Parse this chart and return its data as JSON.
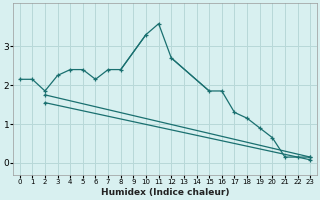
{
  "xlabel": "Humidex (Indice chaleur)",
  "bg_color": "#d8f0f0",
  "grid_color": "#b8d8d8",
  "line_color": "#1a7070",
  "xlim": [
    -0.5,
    23.5
  ],
  "ylim": [
    -0.3,
    4.1
  ],
  "xticks": [
    0,
    1,
    2,
    3,
    4,
    5,
    6,
    7,
    8,
    9,
    10,
    11,
    12,
    13,
    14,
    15,
    16,
    17,
    18,
    19,
    20,
    21,
    22,
    23
  ],
  "yticks": [
    0,
    1,
    2,
    3
  ],
  "curve1_x": [
    0,
    1,
    2,
    3,
    4,
    5,
    6,
    7,
    8,
    10,
    11,
    12,
    15,
    16,
    17,
    18,
    19,
    20,
    21,
    22,
    23
  ],
  "curve1_y": [
    2.15,
    2.15,
    1.85,
    2.25,
    2.4,
    2.4,
    2.15,
    2.4,
    2.4,
    3.3,
    3.58,
    2.7,
    1.85,
    1.85,
    1.3,
    1.15,
    0.9,
    0.65,
    0.15,
    0.15,
    0.15
  ],
  "curve1_gaps": [
    [
      9,
      10
    ],
    [
      13,
      15
    ]
  ],
  "curve2_x": [
    2,
    23
  ],
  "curve2_y": [
    1.75,
    0.15
  ],
  "curve3_x": [
    2,
    23
  ],
  "curve3_y": [
    1.55,
    0.08
  ],
  "markers1": [
    0,
    1,
    2,
    3,
    4,
    5,
    6,
    7,
    8,
    10,
    11,
    12,
    15,
    16,
    17,
    18,
    19,
    20,
    21,
    22,
    23
  ],
  "markers2": [
    2,
    23
  ],
  "markers3": [
    2,
    23
  ]
}
